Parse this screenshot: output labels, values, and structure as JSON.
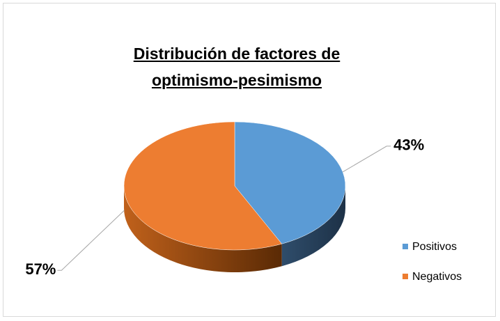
{
  "chart_data": {
    "type": "pie",
    "title": "Distribución de factores de optimismo-pesimismo",
    "categories": [
      "Positivos",
      "Negativos"
    ],
    "values": [
      43,
      57
    ],
    "value_labels": [
      "43%",
      "57%"
    ],
    "colors": [
      "#5b9bd5",
      "#ed7d31"
    ],
    "legend": "right"
  }
}
